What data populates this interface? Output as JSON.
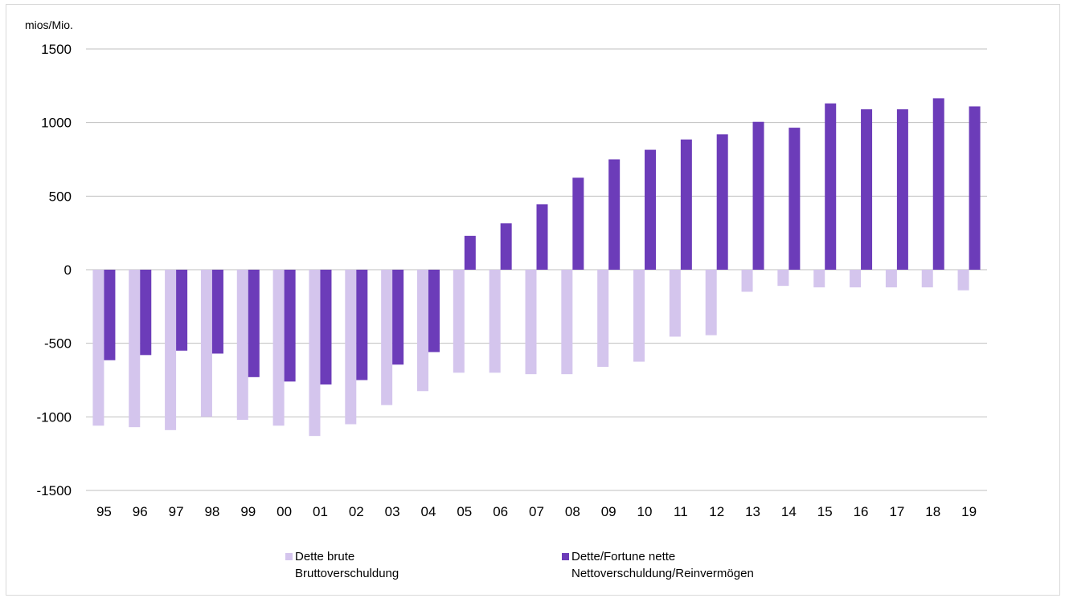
{
  "chart_data": {
    "type": "bar",
    "unit_label": "mios/Mio.",
    "ylim": [
      -1500,
      1500
    ],
    "yticks": [
      1500,
      1000,
      500,
      0,
      -500,
      -1000,
      -1500
    ],
    "grid": true,
    "legend_position": "bottom",
    "categories": [
      "95",
      "96",
      "97",
      "98",
      "99",
      "00",
      "01",
      "02",
      "03",
      "04",
      "05",
      "06",
      "07",
      "08",
      "09",
      "10",
      "11",
      "12",
      "13",
      "14",
      "15",
      "16",
      "17",
      "18",
      "19"
    ],
    "series": [
      {
        "name_line1": "Dette brute",
        "name_line2": "Bruttoverschuldung",
        "color": "#d4c5ed",
        "values": [
          -1060,
          -1070,
          -1090,
          -1000,
          -1020,
          -1060,
          -1130,
          -1050,
          -920,
          -825,
          -700,
          -700,
          -710,
          -710,
          -660,
          -625,
          -455,
          -445,
          -150,
          -110,
          -120,
          -120,
          -120,
          -120,
          -140
        ]
      },
      {
        "name_line1": "Dette/Fortune nette",
        "name_line2": "Nettoverschuldung/Reinvermögen",
        "color": "#6c3cb9",
        "values": [
          -615,
          -580,
          -550,
          -570,
          -730,
          -760,
          -780,
          -750,
          -645,
          -560,
          230,
          315,
          445,
          625,
          750,
          815,
          885,
          920,
          1005,
          965,
          1130,
          1090,
          1090,
          1165,
          1110
        ]
      }
    ]
  }
}
